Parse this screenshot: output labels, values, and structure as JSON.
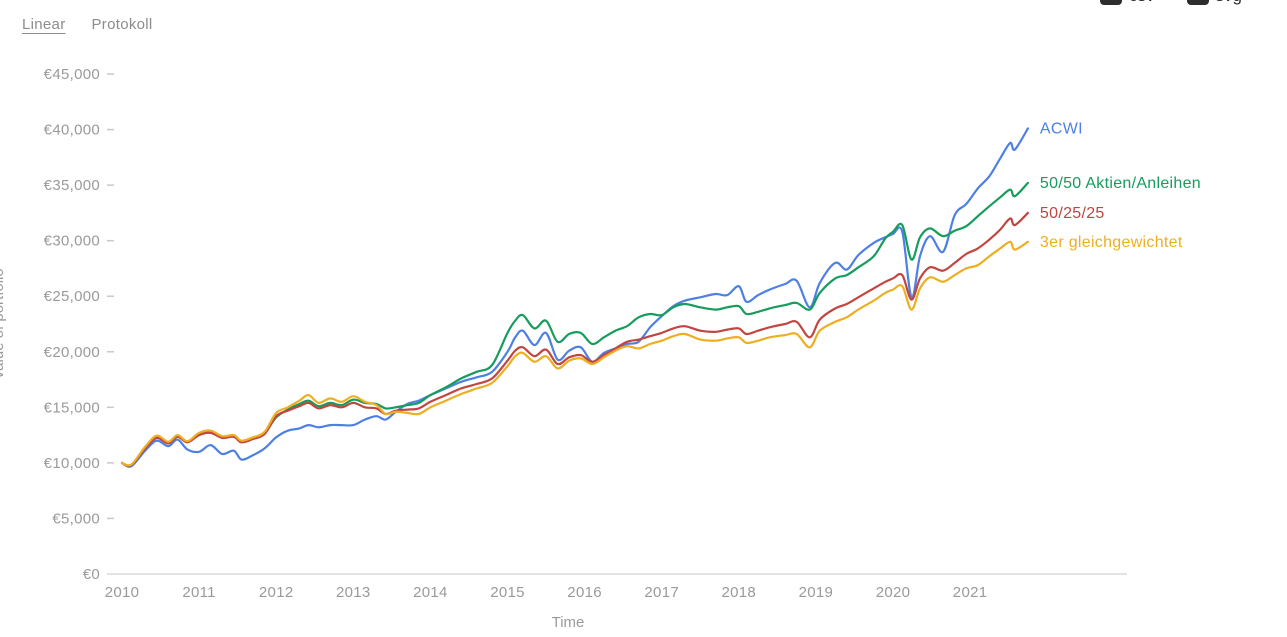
{
  "tabs": {
    "items": [
      {
        "label": "Linear",
        "active": true
      },
      {
        "label": "Protokoll",
        "active": false
      }
    ]
  },
  "export_buttons": {
    "csv_label": "csv",
    "svg_label": "svg"
  },
  "colors": {
    "axis_text": "#9a9a9a",
    "axis_line": "#dcdcdc",
    "tick_mark": "#c9c9c9",
    "tab_text": "#8c8c8c",
    "accent_blue": "#4e80e3",
    "accent_green": "#169c5c",
    "accent_red": "#c14540",
    "accent_yellow": "#eeae22"
  },
  "chart_data": {
    "type": "line",
    "title": "",
    "xlabel": "Time",
    "ylabel": "Value of portfolio",
    "ylim": [
      0,
      45000
    ],
    "ytick_step": 5000,
    "ytick_labels": [
      "€0",
      "€5,000",
      "€10,000",
      "€15,000",
      "€20,000",
      "€25,000",
      "€30,000",
      "€35,000",
      "€40,000",
      "€45,000"
    ],
    "xticks": [
      2010,
      2011,
      2012,
      2013,
      2014,
      2015,
      2016,
      2017,
      2018,
      2019,
      2020,
      2021
    ],
    "grid": false,
    "legend_position": "right of line ends",
    "x": [
      2010.0,
      2010.12,
      2010.3,
      2010.45,
      2010.6,
      2010.72,
      2010.85,
      2011.0,
      2011.15,
      2011.3,
      2011.45,
      2011.55,
      2011.7,
      2011.85,
      2012.0,
      2012.15,
      2012.3,
      2012.42,
      2012.55,
      2012.7,
      2012.85,
      2013.0,
      2013.15,
      2013.3,
      2013.42,
      2013.55,
      2013.7,
      2013.85,
      2014.0,
      2014.2,
      2014.4,
      2014.6,
      2014.8,
      2015.0,
      2015.1,
      2015.2,
      2015.35,
      2015.5,
      2015.65,
      2015.8,
      2015.95,
      2016.1,
      2016.25,
      2016.4,
      2016.55,
      2016.7,
      2016.85,
      2017.0,
      2017.15,
      2017.3,
      2017.5,
      2017.7,
      2017.85,
      2018.0,
      2018.1,
      2018.25,
      2018.4,
      2018.6,
      2018.75,
      2018.92,
      2019.05,
      2019.25,
      2019.4,
      2019.55,
      2019.75,
      2019.9,
      2020.0,
      2020.12,
      2020.24,
      2020.35,
      2020.48,
      2020.65,
      2020.8,
      2020.95,
      2021.1,
      2021.25,
      2021.39,
      2021.52,
      2021.58,
      2021.75
    ],
    "series": [
      {
        "name": "ACWI",
        "color": "#4e80e3",
        "values": [
          10000,
          9700,
          11100,
          12000,
          11500,
          12100,
          11200,
          11000,
          11600,
          10800,
          11100,
          10300,
          10700,
          11300,
          12300,
          12900,
          13100,
          13400,
          13200,
          13400,
          13400,
          13400,
          13900,
          14200,
          13900,
          14600,
          15300,
          15600,
          16100,
          16700,
          17300,
          17700,
          18200,
          20000,
          21300,
          21900,
          20600,
          21700,
          19300,
          20100,
          20400,
          19100,
          19900,
          20300,
          20700,
          20900,
          22200,
          23200,
          24100,
          24600,
          24900,
          25200,
          25100,
          25900,
          24500,
          25100,
          25600,
          26100,
          26400,
          24000,
          26200,
          28000,
          27400,
          28700,
          29800,
          30300,
          30600,
          30800,
          24900,
          28600,
          30400,
          29000,
          32300,
          33300,
          34700,
          35800,
          37400,
          38800,
          38200,
          40100
        ]
      },
      {
        "name": "50/50 Aktien/Anleihen",
        "color": "#169c5c",
        "values": [
          10000,
          9800,
          11400,
          12300,
          11800,
          12400,
          11900,
          12600,
          12800,
          12300,
          12400,
          11900,
          12200,
          12700,
          14100,
          14800,
          15300,
          15600,
          15100,
          15400,
          15200,
          15700,
          15400,
          15300,
          14900,
          15000,
          15200,
          15400,
          16100,
          16800,
          17600,
          18200,
          18800,
          21700,
          22800,
          23300,
          22100,
          22800,
          20900,
          21600,
          21700,
          20700,
          21300,
          21900,
          22300,
          23100,
          23400,
          23300,
          24000,
          24300,
          24000,
          23800,
          24000,
          24100,
          23400,
          23600,
          23900,
          24200,
          24400,
          23800,
          25300,
          26600,
          26900,
          27600,
          28600,
          30200,
          30800,
          31400,
          28300,
          30300,
          31100,
          30400,
          30900,
          31300,
          32200,
          33100,
          33900,
          34600,
          34000,
          35200
        ]
      },
      {
        "name": "50/25/25",
        "color": "#c14540",
        "values": [
          10000,
          9800,
          11300,
          12250,
          11750,
          12350,
          11850,
          12500,
          12700,
          12250,
          12350,
          11850,
          12150,
          12600,
          14200,
          14700,
          15100,
          15400,
          14900,
          15200,
          15000,
          15400,
          15000,
          14900,
          14400,
          14700,
          14800,
          14900,
          15500,
          16100,
          16700,
          17100,
          17600,
          19200,
          20100,
          20400,
          19600,
          20200,
          18900,
          19500,
          19700,
          19100,
          19700,
          20300,
          20900,
          21100,
          21400,
          21700,
          22100,
          22300,
          21900,
          21800,
          22000,
          22100,
          21600,
          21900,
          22200,
          22500,
          22700,
          21300,
          22900,
          23900,
          24300,
          24900,
          25700,
          26300,
          26600,
          26900,
          24700,
          26600,
          27600,
          27300,
          28000,
          28800,
          29300,
          30100,
          31000,
          32000,
          31400,
          32500
        ]
      },
      {
        "name": "3er gleichgewichtet",
        "color": "#eeae22",
        "values": [
          10000,
          9850,
          11450,
          12450,
          11900,
          12500,
          11950,
          12700,
          12900,
          12400,
          12500,
          12000,
          12300,
          12800,
          14500,
          15000,
          15600,
          16100,
          15400,
          15800,
          15500,
          16000,
          15500,
          15200,
          14400,
          14600,
          14500,
          14400,
          15000,
          15600,
          16200,
          16700,
          17200,
          18700,
          19600,
          19900,
          19100,
          19600,
          18500,
          19200,
          19400,
          18900,
          19500,
          20100,
          20500,
          20300,
          20700,
          21000,
          21400,
          21600,
          21100,
          21000,
          21200,
          21300,
          20800,
          21000,
          21300,
          21500,
          21600,
          20400,
          21900,
          22700,
          23100,
          23800,
          24600,
          25300,
          25600,
          25900,
          23800,
          25700,
          26700,
          26300,
          26900,
          27500,
          27800,
          28600,
          29300,
          29900,
          29200,
          29900
        ]
      }
    ]
  }
}
